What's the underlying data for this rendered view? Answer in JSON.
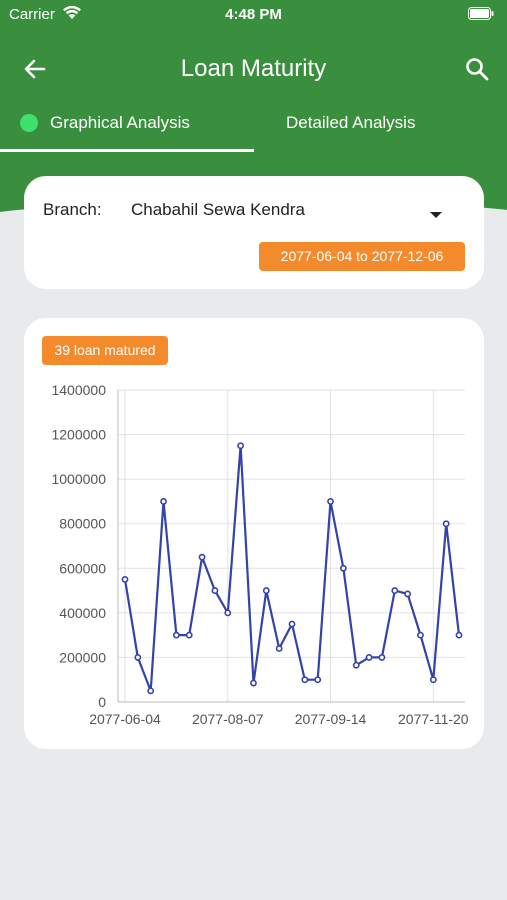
{
  "status_bar": {
    "carrier": "Carrier",
    "time": "4:48 PM"
  },
  "app_bar": {
    "title": "Loan Maturity",
    "back_icon": "arrow-left-icon",
    "search_icon": "search-icon"
  },
  "tabs": [
    {
      "label": "Graphical Analysis",
      "active": true
    },
    {
      "label": "Detailed Analysis",
      "active": false
    }
  ],
  "filter": {
    "branch_label": "Branch:",
    "branch_value": "Chabahil Sewa Kendra",
    "date_range": "2077-06-04 to 2077-12-06"
  },
  "chart": {
    "badge": "39 loan matured"
  },
  "colors": {
    "primary": "#3a8f3e",
    "accent": "#f38a2b",
    "series": "#3343a8",
    "tab_dot": "#3ee06e"
  },
  "chart_data": {
    "type": "line",
    "x_ticks": [
      "2077-06-04",
      "2077-08-07",
      "2077-09-14",
      "2077-11-20"
    ],
    "y_ticks": [
      "0",
      "200000",
      "400000",
      "600000",
      "800000",
      "1000000",
      "1200000",
      "1400000"
    ],
    "ylim": [
      0,
      1400000
    ],
    "grid": true,
    "series": [
      {
        "values": [
          550000,
          200000,
          50000,
          900000,
          300000,
          300000,
          650000,
          500000,
          400000,
          1150000,
          85000,
          500000,
          240000,
          350000,
          100000,
          100000,
          900000,
          600000,
          165000,
          200000,
          200000,
          500000,
          485000,
          300000,
          100000,
          800000,
          300000
        ]
      }
    ]
  }
}
